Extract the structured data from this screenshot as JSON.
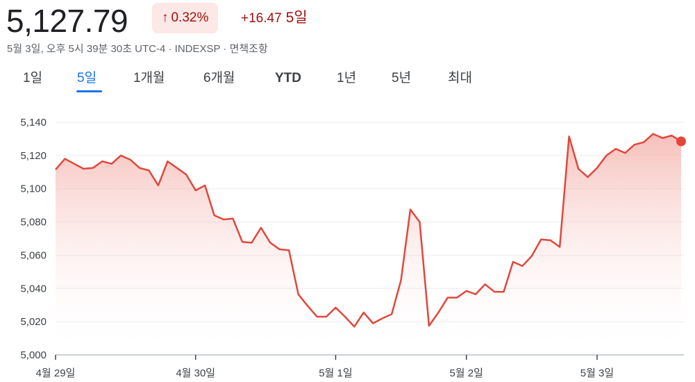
{
  "header": {
    "price": "5,127.79",
    "pct_change": "0.32%",
    "up_arrow_icon": "arrow-up-icon",
    "abs_change": "+16.47",
    "period": "5일",
    "meta": "5월 3일, 오후 5시 39분 30초 UTC-4 · INDEXSP · 면책조항"
  },
  "tabs": [
    {
      "label": "1일"
    },
    {
      "label": "5일",
      "active": true
    },
    {
      "label": "1개월"
    },
    {
      "label": "6개월"
    },
    {
      "label": "YTD"
    },
    {
      "label": "1년"
    },
    {
      "label": "5년"
    },
    {
      "label": "최대"
    }
  ],
  "colors": {
    "line": "#e2463b",
    "fill_top": "#f4b4ae",
    "accent_tab": "#1a73e8",
    "negative_text": "#a50e0e",
    "badge_bg": "#fce8e6"
  },
  "chart_data": {
    "type": "area",
    "ylim": [
      5000,
      5140
    ],
    "yticks": [
      5140,
      5120,
      5100,
      5080,
      5060,
      5040,
      5020,
      5000
    ],
    "ytick_labels": [
      "5,140",
      "5,120",
      "5,100",
      "5,080",
      "5,060",
      "5,040",
      "5,020",
      "5,000"
    ],
    "xtick_labels": [
      "4월 29일",
      "4월 30일",
      "5월 1일",
      "5월 2일",
      "5월 3일"
    ],
    "xtick_index": [
      0,
      15,
      30,
      44,
      58
    ],
    "grid": true,
    "series": [
      {
        "values": [
          5111.5,
          5118,
          5115,
          5112,
          5112.5,
          5116.5,
          5115,
          5120,
          5117.5,
          5112.5,
          5111,
          5102,
          5116.5,
          5112.5,
          5108.5,
          5099,
          5102,
          5084,
          5081.5,
          5082,
          5068,
          5067.5,
          5076.5,
          5067.5,
          5063.5,
          5063,
          5036.5,
          5029.5,
          5023,
          5023,
          5028.5,
          5023,
          5017,
          5025.5,
          5019,
          5022,
          5024.5,
          5045,
          5087.5,
          5080,
          5017.5,
          5025.5,
          5034.5,
          5034.5,
          5038.5,
          5036.5,
          5042.5,
          5038,
          5038,
          5056,
          5053.5,
          5059.5,
          5069.5,
          5069,
          5065,
          5131.5,
          5112,
          5107,
          5112.5,
          5120,
          5124,
          5121.5,
          5126.5,
          5128,
          5133,
          5130.5,
          5132,
          5128.5
        ]
      }
    ]
  }
}
